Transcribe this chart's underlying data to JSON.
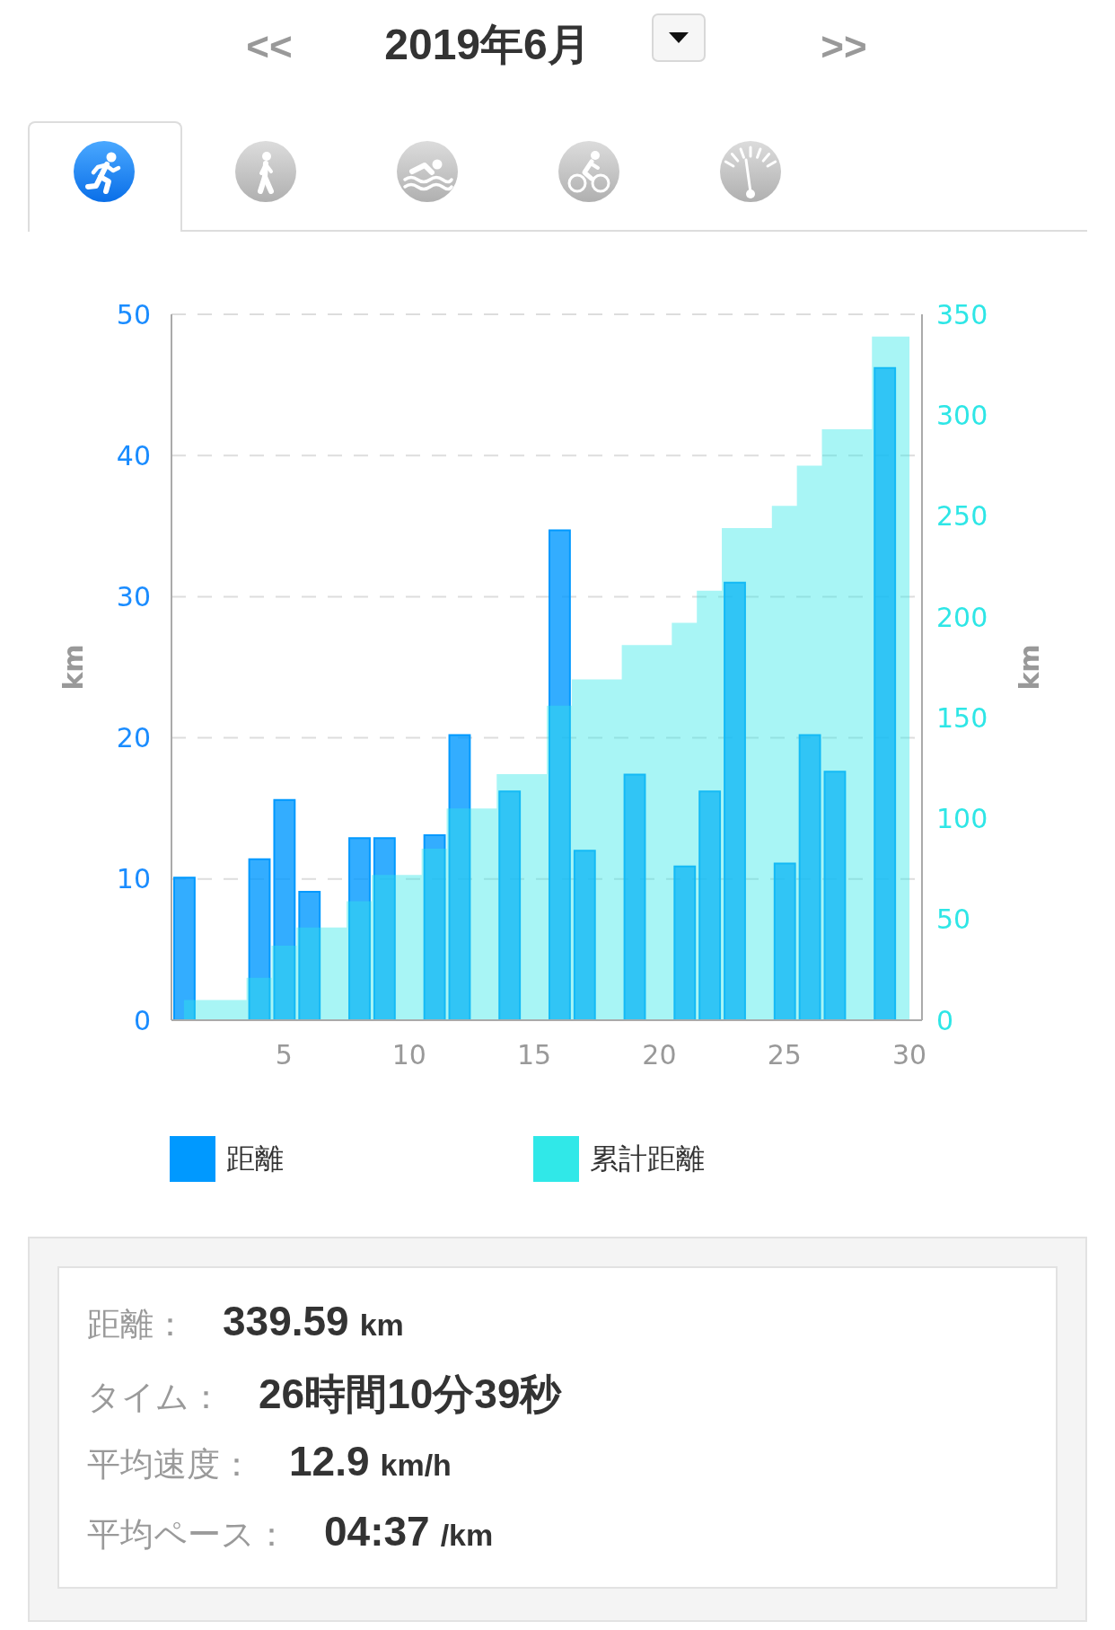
{
  "chart_data": {
    "type": "bar",
    "title": "2019年6月",
    "annotations": [
      "<<",
      ">>",
      "距離：",
      "339.59 km",
      "タイム：",
      "26時間10分39秒",
      "平均速度：",
      "12.9 km/h",
      "平均ペース：",
      "04:37 /km"
    ],
    "x": [
      1,
      2,
      3,
      4,
      5,
      6,
      7,
      8,
      9,
      10,
      11,
      12,
      13,
      14,
      15,
      16,
      17,
      18,
      19,
      20,
      21,
      22,
      23,
      24,
      25,
      26,
      27,
      28,
      29,
      30
    ],
    "xlim": [
      0.5,
      30.5
    ],
    "xticks": [
      5,
      10,
      15,
      20,
      25,
      30
    ],
    "ylim": [
      0,
      50
    ],
    "yticks": [
      0,
      10,
      20,
      30,
      40,
      50
    ],
    "ylabel": "km",
    "y2lim": [
      0,
      350
    ],
    "y2ticks": [
      0,
      50,
      100,
      150,
      200,
      250,
      300,
      350
    ],
    "y2label": "km",
    "series": [
      {
        "name": "距離",
        "color": "#0099ff",
        "values": [
          10.1,
          null,
          null,
          11.4,
          15.6,
          9.1,
          null,
          12.9,
          12.9,
          null,
          13.1,
          20.2,
          null,
          16.2,
          null,
          34.7,
          12.0,
          null,
          17.4,
          null,
          10.9,
          16.2,
          31.0,
          null,
          11.1,
          20.2,
          17.6,
          null,
          46.2,
          null
        ]
      },
      {
        "name": "累計距離",
        "type": "area",
        "axis": "y2",
        "color": "#30e8e8",
        "values": [
          10,
          10,
          10,
          21,
          37,
          46,
          46,
          59,
          72,
          72,
          85,
          105,
          105,
          122,
          122,
          156,
          169,
          169,
          186,
          186,
          197,
          213,
          244,
          244,
          255,
          275,
          293,
          293,
          339,
          339
        ]
      }
    ],
    "grid": "y",
    "legend": "bottom"
  }
}
